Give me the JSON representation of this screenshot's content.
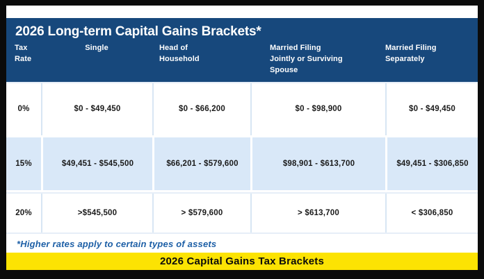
{
  "chart_data": {
    "type": "table",
    "title": "2026 Long-term Capital Gains Brackets*",
    "columns": [
      "Tax Rate",
      "Single",
      "Head of Household",
      "Married Filing Jointly or Surviving Spouse",
      "Married Filing Separately"
    ],
    "rows": [
      [
        "0%",
        "$0 - $49,450",
        "$0 - $66,200",
        "$0 - $98,900",
        "$0 - $49,450"
      ],
      [
        "15%",
        "$49,451 - $545,500",
        "$66,201 - $579,600",
        "$98,901 - $613,700",
        "$49,451 - $306,850"
      ],
      [
        "20%",
        ">$545,500",
        "> $579,600",
        "> $613,700",
        "< $306,850"
      ]
    ],
    "footnote": "*Higher rates apply to certain types of assets",
    "caption": "2026 Capital Gains Tax Brackets",
    "legend_position": "none",
    "grid": "light-blue cell separators"
  },
  "colors": {
    "header_navy": "#17487c",
    "row_alt_blue": "#d9e8f8",
    "banner_yellow": "#fce303",
    "footnote_blue": "#1d5fa6",
    "frame_black": "#0b0b0b",
    "header_text": "#ffffff",
    "body_text": "#1a1a1a"
  }
}
